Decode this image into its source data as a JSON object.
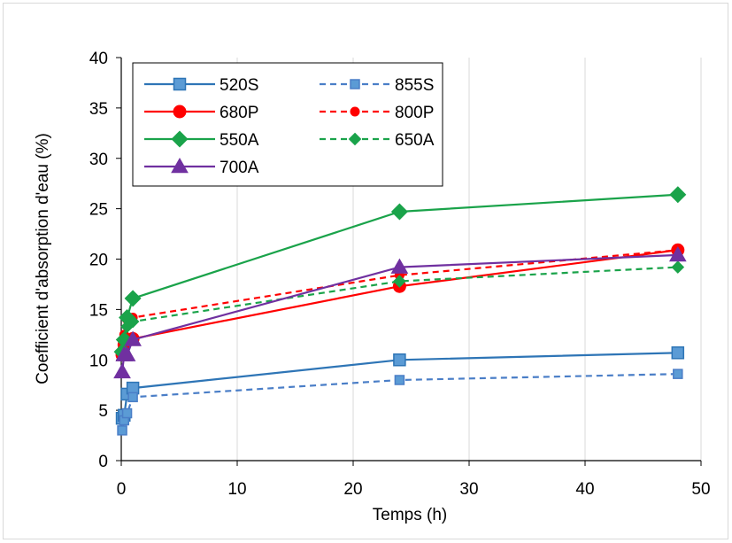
{
  "chart_data": {
    "type": "line",
    "xlabel": "Temps (h)",
    "ylabel": "Coefficient d'absorption d'eau (%)",
    "xlim": [
      0,
      50
    ],
    "ylim": [
      0,
      40
    ],
    "xticks": [
      0,
      10,
      20,
      30,
      40,
      50
    ],
    "yticks": [
      0,
      5,
      10,
      15,
      20,
      25,
      30,
      35,
      40
    ],
    "grid": "vertical",
    "legend_position": "top-left",
    "series": [
      {
        "name": "520S",
        "color": "#2e75b6",
        "dash": "solid",
        "marker": "square",
        "x": [
          0.08,
          0.25,
          0.5,
          1,
          24,
          48
        ],
        "y": [
          4.2,
          4.5,
          6.6,
          7.2,
          10.0,
          10.7
        ]
      },
      {
        "name": "855S",
        "color": "#4a7ec7",
        "dash": "dashed",
        "marker": "square",
        "x": [
          0.08,
          0.25,
          0.5,
          1,
          24,
          48
        ],
        "y": [
          3.0,
          4.0,
          4.7,
          6.3,
          8.0,
          8.6
        ]
      },
      {
        "name": "680P",
        "color": "#ff0000",
        "dash": "solid",
        "marker": "circle",
        "x": [
          0.08,
          0.25,
          0.5,
          1,
          24,
          48
        ],
        "y": [
          10.5,
          11.5,
          12.0,
          12.1,
          17.3,
          20.9
        ]
      },
      {
        "name": "800P",
        "color": "#ff0000",
        "dash": "dashed",
        "marker": "circle",
        "x": [
          0.08,
          0.25,
          0.5,
          1,
          24,
          48
        ],
        "y": [
          11.0,
          12.5,
          14.0,
          14.2,
          18.4,
          20.9
        ]
      },
      {
        "name": "550A",
        "color": "#1aa34a",
        "dash": "solid",
        "marker": "diamond",
        "x": [
          0.08,
          0.25,
          0.5,
          1,
          24,
          48
        ],
        "y": [
          10.8,
          12.0,
          14.2,
          16.1,
          24.7,
          26.4
        ]
      },
      {
        "name": "650A",
        "color": "#1aa34a",
        "dash": "dashed",
        "marker": "diamond",
        "x": [
          0.08,
          0.25,
          0.5,
          1,
          24,
          48
        ],
        "y": [
          10.6,
          11.8,
          13.3,
          13.8,
          17.8,
          19.2
        ]
      },
      {
        "name": "700A",
        "color": "#7030a0",
        "dash": "solid",
        "marker": "triangle",
        "x": [
          0.08,
          0.25,
          0.5,
          1,
          24,
          48
        ],
        "y": [
          8.8,
          10.5,
          10.5,
          12.0,
          19.2,
          20.4
        ]
      }
    ]
  }
}
